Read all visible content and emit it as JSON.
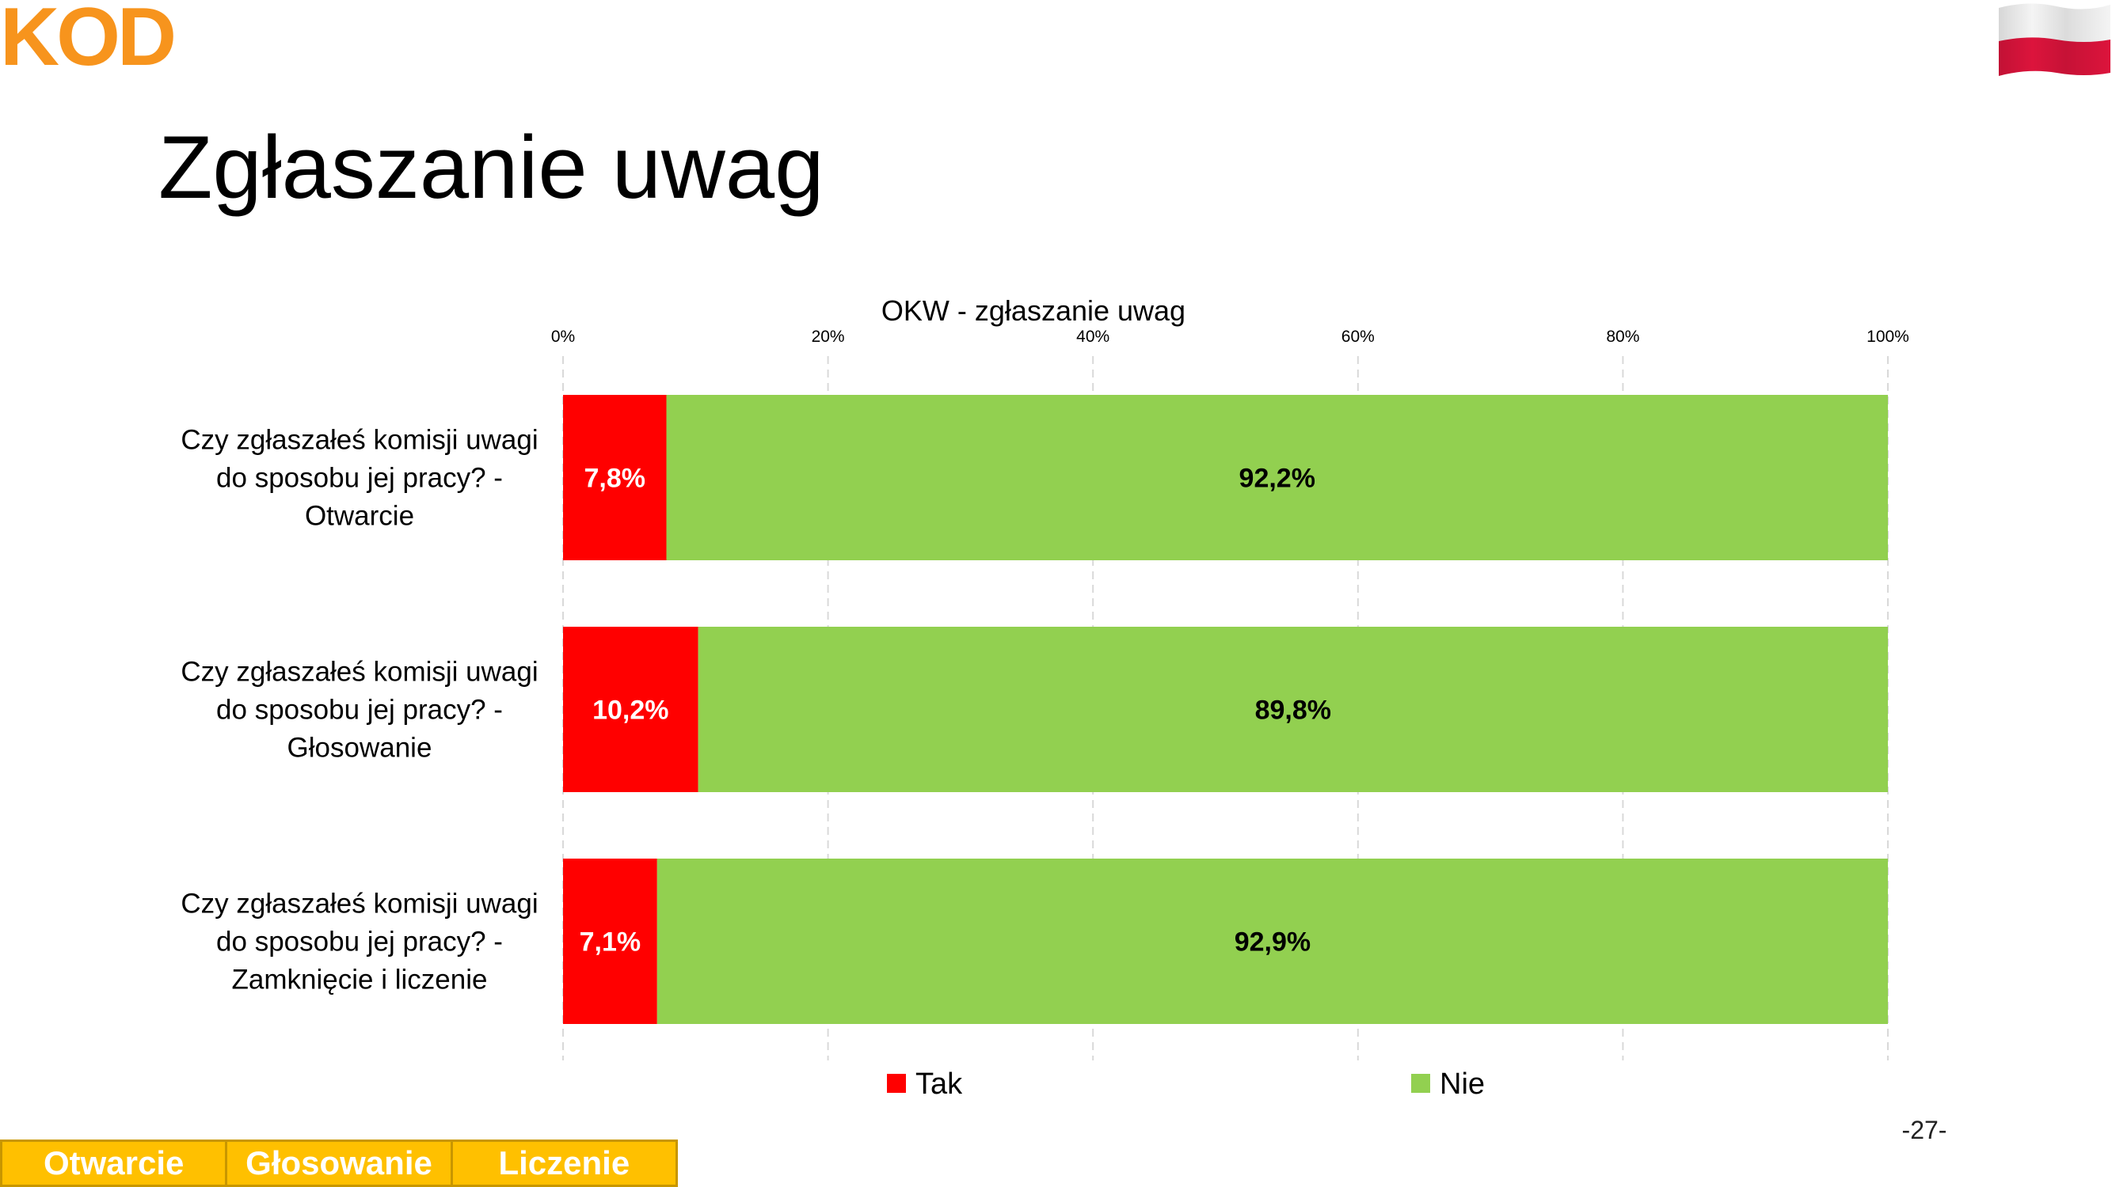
{
  "brand": {
    "logo_text": "KOD",
    "logo_color": "#f7941d",
    "flag_colors": [
      "#ffffff",
      "#dc143c"
    ]
  },
  "slide": {
    "title": "Zgłaszanie uwag",
    "page_number": "-27-"
  },
  "nav": {
    "tabs": [
      {
        "label": "Otwarcie"
      },
      {
        "label": "Głosowanie"
      },
      {
        "label": "Liczenie"
      }
    ],
    "color": "#ffc000"
  },
  "chart_data": {
    "type": "bar",
    "orientation": "horizontal",
    "stacking": "percent",
    "title": "OKW - zgłaszanie uwag",
    "xlim": [
      0,
      100
    ],
    "x_ticks": [
      "0%",
      "20%",
      "40%",
      "60%",
      "80%",
      "100%"
    ],
    "grid": "vertical dashed",
    "legend_position": "bottom",
    "categories": [
      "Czy zgłaszałeś komisji uwagi do sposobu jej pracy? - Otwarcie",
      "Czy zgłaszałeś komisji uwagi do sposobu jej pracy? - Głosowanie",
      "Czy zgłaszałeś komisji uwagi do sposobu jej pracy? - Zamknięcie i liczenie"
    ],
    "category_lines": [
      [
        "Czy zgłaszałeś komisji uwagi",
        "do sposobu jej pracy? -",
        "Otwarcie"
      ],
      [
        "Czy zgłaszałeś komisji uwagi",
        "do sposobu jej pracy? -",
        "Głosowanie"
      ],
      [
        "Czy zgłaszałeś komisji uwagi",
        "do sposobu jej pracy? -",
        "Zamknięcie i liczenie"
      ]
    ],
    "series": [
      {
        "name": "Tak",
        "color": "#ff0000",
        "label_color": "#ffffff",
        "values": [
          7.8,
          10.2,
          7.1
        ],
        "labels": [
          "7,8%",
          "10,2%",
          "7,1%"
        ]
      },
      {
        "name": "Nie",
        "color": "#92d050",
        "label_color": "#000000",
        "values": [
          92.2,
          89.8,
          92.9
        ],
        "labels": [
          "92,2%",
          "89,8%",
          "92,9%"
        ]
      }
    ]
  }
}
